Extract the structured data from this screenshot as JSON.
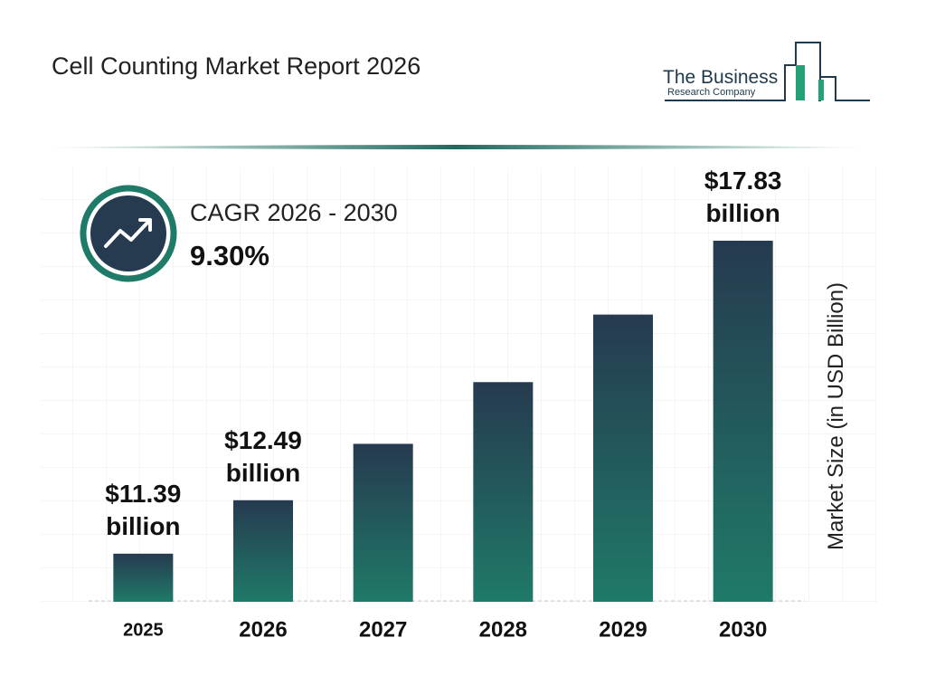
{
  "chart_data": {
    "type": "bar",
    "title": "Cell Counting Market Report 2026",
    "logo": [
      "The Business",
      "Research Company"
    ],
    "cagr_label": "CAGR 2026 - 2030",
    "cagr_value": "9.30%",
    "y_label": "Market Size (in USD Billion)",
    "categories": [
      "2025",
      "2026",
      "2027",
      "2028",
      "2029",
      "2030"
    ],
    "values": [
      11.39,
      12.49,
      13.65,
      14.92,
      16.31,
      17.83
    ],
    "value_labels": [
      "$11.39 billion",
      "$12.49 billion",
      null,
      null,
      null,
      "$17.83 billion"
    ],
    "color": [
      "#263a50",
      "#1f7a68"
    ],
    "ylim": [
      10.4,
      18.5
    ]
  }
}
